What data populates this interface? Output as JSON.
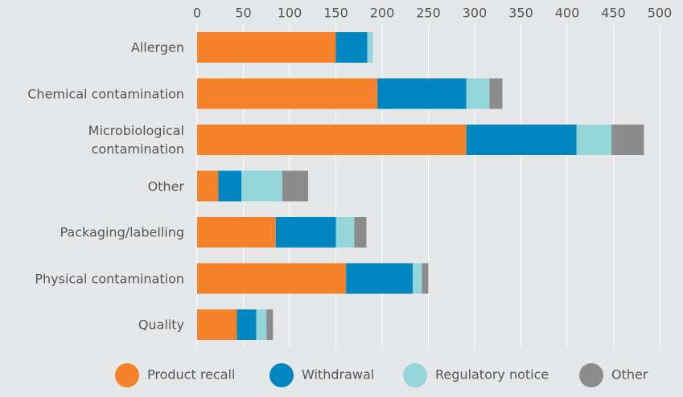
{
  "chart_data": {
    "type": "bar",
    "orientation": "horizontal",
    "stacked": true,
    "categories": [
      "Allergen",
      "Chemical contamination",
      "Microbiological\ncontamination",
      "Other",
      "Packaging/labelling",
      "Physical contamination",
      "Quality"
    ],
    "series": [
      {
        "name": "Product recall",
        "color": "#f5822a",
        "values": [
          150,
          195,
          291,
          23,
          85,
          161,
          43
        ]
      },
      {
        "name": "Withdrawal",
        "color": "#0087c1",
        "values": [
          34,
          96,
          119,
          25,
          65,
          72,
          21
        ]
      },
      {
        "name": "Regulatory notice",
        "color": "#94d5da",
        "values": [
          6,
          25,
          38,
          44,
          20,
          10,
          11
        ]
      },
      {
        "name": "Other",
        "color": "#8c8c8d",
        "values": [
          0,
          14,
          35,
          28,
          13,
          7,
          7
        ]
      }
    ],
    "xlim": [
      0,
      500
    ],
    "xticks": [
      0,
      50,
      100,
      150,
      200,
      250,
      300,
      350,
      400,
      450,
      500
    ],
    "grid": true,
    "legend": "bottom"
  }
}
